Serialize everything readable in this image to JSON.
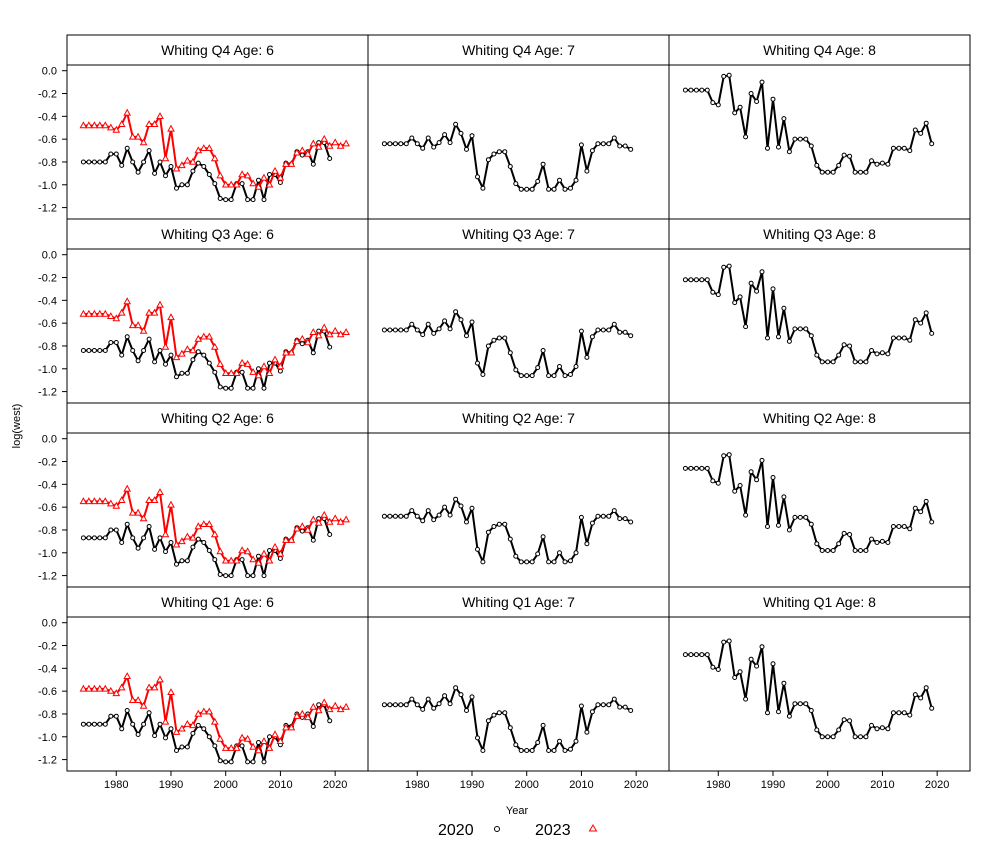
{
  "chart_data": {
    "type": "line",
    "ylabel": "log(west)",
    "xlabel": "Year",
    "xlim": [
      1971,
      2026
    ],
    "x_ticks": [
      1980,
      1990,
      2000,
      2010,
      2020
    ],
    "y_ticks": [
      0.0,
      -0.2,
      -0.4,
      -0.6,
      -0.8,
      -1.0,
      -1.2
    ],
    "y_tick_labels": [
      "0.0",
      "-0.2",
      "-0.4",
      "-0.6",
      "-0.8",
      "-1.0",
      "-1.2"
    ],
    "legend": {
      "placement": "bottom",
      "entries": [
        {
          "label": "2020",
          "color": "#000000",
          "marker": "circle"
        },
        {
          "label": "2023",
          "color": "#ff0000",
          "marker": "triangle"
        }
      ]
    },
    "years_2020": [
      1974,
      1975,
      1976,
      1977,
      1978,
      1979,
      1980,
      1981,
      1982,
      1983,
      1984,
      1985,
      1986,
      1987,
      1988,
      1989,
      1990,
      1991,
      1992,
      1993,
      1994,
      1995,
      1996,
      1997,
      1998,
      1999,
      2000,
      2001,
      2002,
      2003,
      2004,
      2005,
      2006,
      2007,
      2008,
      2009,
      2010,
      2011,
      2012,
      2013,
      2014,
      2015,
      2016,
      2017,
      2018,
      2019
    ],
    "years_2023": [
      1974,
      1975,
      1976,
      1977,
      1978,
      1979,
      1980,
      1981,
      1982,
      1983,
      1984,
      1985,
      1986,
      1987,
      1988,
      1989,
      1990,
      1991,
      1992,
      1993,
      1994,
      1995,
      1996,
      1997,
      1998,
      1999,
      2000,
      2001,
      2002,
      2003,
      2004,
      2005,
      2006,
      2007,
      2008,
      2009,
      2010,
      2011,
      2012,
      2013,
      2014,
      2015,
      2016,
      2017,
      2018,
      2019,
      2020,
      2021,
      2022
    ],
    "panel_rows": [
      {
        "ylim": [
          -1.3,
          0.05
        ],
        "panels": [
          {
            "title": "Whiting Q4 Age: 6",
            "s2020": [
              -0.8,
              -0.8,
              -0.8,
              -0.8,
              -0.8,
              -0.73,
              -0.73,
              -0.83,
              -0.68,
              -0.8,
              -0.89,
              -0.8,
              -0.7,
              -0.9,
              -0.8,
              -0.92,
              -0.84,
              -1.03,
              -1.0,
              -1.0,
              -0.88,
              -0.81,
              -0.84,
              -0.91,
              -0.99,
              -1.12,
              -1.13,
              -1.13,
              -0.99,
              -0.99,
              -1.13,
              -1.13,
              -0.96,
              -1.13,
              -0.91,
              -0.91,
              -0.98,
              -0.81,
              -0.82,
              -0.71,
              -0.74,
              -0.71,
              -0.82,
              -0.63,
              -0.63,
              -0.77
            ],
            "s2023": [
              -0.48,
              -0.48,
              -0.48,
              -0.48,
              -0.48,
              -0.5,
              -0.52,
              -0.47,
              -0.37,
              -0.58,
              -0.58,
              -0.63,
              -0.47,
              -0.47,
              -0.4,
              -0.77,
              -0.51,
              -0.86,
              -0.83,
              -0.79,
              -0.8,
              -0.7,
              -0.68,
              -0.68,
              -0.77,
              -0.92,
              -1.0,
              -1.0,
              -1.0,
              -0.91,
              -0.92,
              -0.99,
              -1.02,
              -0.94,
              -1.0,
              -0.88,
              -0.94,
              -0.82,
              -0.82,
              -0.72,
              -0.7,
              -0.73,
              -0.64,
              -0.67,
              -0.6,
              -0.66,
              -0.63,
              -0.66,
              -0.64
            ]
          },
          {
            "title": "Whiting Q4 Age: 7",
            "s2020": [
              -0.64,
              -0.64,
              -0.64,
              -0.64,
              -0.64,
              -0.59,
              -0.64,
              -0.68,
              -0.59,
              -0.67,
              -0.63,
              -0.56,
              -0.63,
              -0.47,
              -0.55,
              -0.69,
              -0.57,
              -0.93,
              -1.03,
              -0.78,
              -0.73,
              -0.71,
              -0.71,
              -0.84,
              -0.99,
              -1.04,
              -1.04,
              -1.04,
              -0.97,
              -0.82,
              -1.04,
              -1.04,
              -0.96,
              -1.04,
              -1.03,
              -0.96,
              -0.65,
              -0.88,
              -0.7,
              -0.64,
              -0.64,
              -0.64,
              -0.59,
              -0.66,
              -0.66,
              -0.69
            ],
            "s2023": null
          },
          {
            "title": "Whiting Q4 Age: 8",
            "s2020": [
              -0.17,
              -0.17,
              -0.17,
              -0.17,
              -0.17,
              -0.28,
              -0.3,
              -0.05,
              -0.04,
              -0.37,
              -0.32,
              -0.58,
              -0.2,
              -0.27,
              -0.1,
              -0.68,
              -0.25,
              -0.67,
              -0.42,
              -0.71,
              -0.6,
              -0.6,
              -0.6,
              -0.66,
              -0.83,
              -0.89,
              -0.89,
              -0.89,
              -0.83,
              -0.74,
              -0.75,
              -0.89,
              -0.89,
              -0.89,
              -0.79,
              -0.82,
              -0.81,
              -0.82,
              -0.68,
              -0.68,
              -0.68,
              -0.7,
              -0.52,
              -0.55,
              -0.46,
              -0.64
            ],
            "s2023": null
          }
        ]
      },
      {
        "ylim": [
          -1.3,
          0.05
        ],
        "panels": [
          {
            "title": "Whiting Q3 Age: 6",
            "s2020": [
              -0.84,
              -0.84,
              -0.84,
              -0.84,
              -0.84,
              -0.77,
              -0.77,
              -0.88,
              -0.72,
              -0.84,
              -0.93,
              -0.84,
              -0.74,
              -0.94,
              -0.84,
              -0.96,
              -0.88,
              -1.07,
              -1.04,
              -1.04,
              -0.92,
              -0.85,
              -0.88,
              -0.95,
              -1.03,
              -1.16,
              -1.17,
              -1.17,
              -1.03,
              -1.03,
              -1.17,
              -1.17,
              -1.0,
              -1.17,
              -0.95,
              -0.95,
              -1.02,
              -0.85,
              -0.86,
              -0.75,
              -0.78,
              -0.75,
              -0.86,
              -0.67,
              -0.67,
              -0.81
            ],
            "s2023": [
              -0.52,
              -0.52,
              -0.52,
              -0.52,
              -0.52,
              -0.54,
              -0.56,
              -0.51,
              -0.41,
              -0.62,
              -0.62,
              -0.67,
              -0.51,
              -0.51,
              -0.44,
              -0.81,
              -0.55,
              -0.9,
              -0.87,
              -0.83,
              -0.84,
              -0.74,
              -0.72,
              -0.72,
              -0.81,
              -0.96,
              -1.04,
              -1.04,
              -1.04,
              -0.95,
              -0.96,
              -1.03,
              -1.06,
              -0.98,
              -1.04,
              -0.92,
              -0.98,
              -0.86,
              -0.86,
              -0.76,
              -0.74,
              -0.77,
              -0.68,
              -0.71,
              -0.64,
              -0.7,
              -0.67,
              -0.7,
              -0.68
            ]
          },
          {
            "title": "Whiting Q3 Age: 7",
            "s2020": [
              -0.66,
              -0.66,
              -0.66,
              -0.66,
              -0.66,
              -0.61,
              -0.66,
              -0.7,
              -0.61,
              -0.69,
              -0.65,
              -0.58,
              -0.65,
              -0.5,
              -0.57,
              -0.71,
              -0.59,
              -0.95,
              -1.05,
              -0.8,
              -0.75,
              -0.73,
              -0.73,
              -0.86,
              -1.01,
              -1.06,
              -1.06,
              -1.06,
              -0.99,
              -0.84,
              -1.06,
              -1.06,
              -0.98,
              -1.06,
              -1.05,
              -0.98,
              -0.67,
              -0.9,
              -0.72,
              -0.66,
              -0.66,
              -0.66,
              -0.61,
              -0.68,
              -0.68,
              -0.71
            ],
            "s2023": null
          },
          {
            "title": "Whiting Q3 Age: 8",
            "s2020": [
              -0.22,
              -0.22,
              -0.22,
              -0.22,
              -0.22,
              -0.33,
              -0.35,
              -0.11,
              -0.1,
              -0.42,
              -0.37,
              -0.63,
              -0.25,
              -0.32,
              -0.15,
              -0.73,
              -0.3,
              -0.72,
              -0.47,
              -0.76,
              -0.65,
              -0.65,
              -0.65,
              -0.71,
              -0.88,
              -0.94,
              -0.94,
              -0.94,
              -0.88,
              -0.79,
              -0.8,
              -0.94,
              -0.94,
              -0.94,
              -0.84,
              -0.87,
              -0.86,
              -0.87,
              -0.73,
              -0.73,
              -0.73,
              -0.75,
              -0.57,
              -0.6,
              -0.51,
              -0.69
            ],
            "s2023": null
          }
        ]
      },
      {
        "ylim": [
          -1.3,
          0.05
        ],
        "panels": [
          {
            "title": "Whiting Q2 Age: 6",
            "s2020": [
              -0.87,
              -0.87,
              -0.87,
              -0.87,
              -0.87,
              -0.8,
              -0.8,
              -0.91,
              -0.75,
              -0.87,
              -0.96,
              -0.87,
              -0.77,
              -0.97,
              -0.87,
              -0.99,
              -0.91,
              -1.1,
              -1.07,
              -1.07,
              -0.95,
              -0.88,
              -0.91,
              -0.98,
              -1.06,
              -1.19,
              -1.2,
              -1.2,
              -1.06,
              -1.06,
              -1.2,
              -1.2,
              -1.03,
              -1.2,
              -0.98,
              -0.98,
              -1.05,
              -0.88,
              -0.89,
              -0.78,
              -0.81,
              -0.78,
              -0.89,
              -0.7,
              -0.7,
              -0.84
            ],
            "s2023": [
              -0.55,
              -0.55,
              -0.55,
              -0.55,
              -0.55,
              -0.57,
              -0.59,
              -0.54,
              -0.44,
              -0.65,
              -0.65,
              -0.7,
              -0.54,
              -0.54,
              -0.47,
              -0.84,
              -0.58,
              -0.93,
              -0.9,
              -0.86,
              -0.87,
              -0.77,
              -0.75,
              -0.75,
              -0.84,
              -0.99,
              -1.07,
              -1.07,
              -1.07,
              -0.98,
              -0.99,
              -1.06,
              -1.09,
              -1.01,
              -1.07,
              -0.95,
              -1.01,
              -0.89,
              -0.89,
              -0.79,
              -0.77,
              -0.8,
              -0.71,
              -0.74,
              -0.67,
              -0.73,
              -0.7,
              -0.73,
              -0.71
            ]
          },
          {
            "title": "Whiting Q2 Age: 7",
            "s2020": [
              -0.68,
              -0.68,
              -0.68,
              -0.68,
              -0.68,
              -0.63,
              -0.68,
              -0.72,
              -0.63,
              -0.71,
              -0.67,
              -0.6,
              -0.67,
              -0.53,
              -0.59,
              -0.73,
              -0.61,
              -0.97,
              -1.08,
              -0.82,
              -0.77,
              -0.75,
              -0.75,
              -0.88,
              -1.03,
              -1.08,
              -1.08,
              -1.08,
              -1.01,
              -0.86,
              -1.08,
              -1.08,
              -1.0,
              -1.08,
              -1.07,
              -1.0,
              -0.69,
              -0.92,
              -0.74,
              -0.68,
              -0.68,
              -0.68,
              -0.63,
              -0.7,
              -0.7,
              -0.73
            ],
            "s2023": null
          },
          {
            "title": "Whiting Q2 Age: 8",
            "s2020": [
              -0.26,
              -0.26,
              -0.26,
              -0.26,
              -0.26,
              -0.37,
              -0.39,
              -0.15,
              -0.14,
              -0.46,
              -0.41,
              -0.67,
              -0.29,
              -0.36,
              -0.19,
              -0.77,
              -0.34,
              -0.76,
              -0.51,
              -0.8,
              -0.69,
              -0.69,
              -0.69,
              -0.75,
              -0.92,
              -0.98,
              -0.98,
              -0.98,
              -0.92,
              -0.83,
              -0.84,
              -0.98,
              -0.98,
              -0.98,
              -0.88,
              -0.91,
              -0.9,
              -0.91,
              -0.77,
              -0.77,
              -0.77,
              -0.79,
              -0.61,
              -0.64,
              -0.55,
              -0.73
            ],
            "s2023": null
          }
        ]
      },
      {
        "ylim": [
          -1.3,
          0.05
        ],
        "panels": [
          {
            "title": "Whiting Q1 Age: 6",
            "s2020": [
              -0.89,
              -0.89,
              -0.89,
              -0.89,
              -0.89,
              -0.82,
              -0.82,
              -0.93,
              -0.77,
              -0.89,
              -0.98,
              -0.89,
              -0.79,
              -0.99,
              -0.89,
              -1.01,
              -0.93,
              -1.12,
              -1.09,
              -1.09,
              -0.97,
              -0.9,
              -0.93,
              -1.0,
              -1.08,
              -1.21,
              -1.22,
              -1.22,
              -1.08,
              -1.08,
              -1.22,
              -1.22,
              -1.05,
              -1.22,
              -1.0,
              -1.0,
              -1.07,
              -0.9,
              -0.91,
              -0.8,
              -0.83,
              -0.8,
              -0.91,
              -0.72,
              -0.72,
              -0.86
            ],
            "s2023": [
              -0.58,
              -0.58,
              -0.58,
              -0.58,
              -0.58,
              -0.6,
              -0.62,
              -0.57,
              -0.47,
              -0.68,
              -0.68,
              -0.73,
              -0.57,
              -0.57,
              -0.5,
              -0.87,
              -0.61,
              -0.96,
              -0.93,
              -0.89,
              -0.9,
              -0.8,
              -0.78,
              -0.78,
              -0.87,
              -1.02,
              -1.1,
              -1.1,
              -1.1,
              -1.01,
              -1.02,
              -1.09,
              -1.12,
              -1.04,
              -1.1,
              -0.98,
              -1.04,
              -0.92,
              -0.92,
              -0.82,
              -0.8,
              -0.83,
              -0.74,
              -0.77,
              -0.7,
              -0.76,
              -0.73,
              -0.76,
              -0.74
            ]
          },
          {
            "title": "Whiting Q1 Age: 7",
            "s2020": [
              -0.72,
              -0.72,
              -0.72,
              -0.72,
              -0.72,
              -0.67,
              -0.72,
              -0.76,
              -0.67,
              -0.75,
              -0.71,
              -0.64,
              -0.71,
              -0.57,
              -0.63,
              -0.77,
              -0.65,
              -1.01,
              -1.12,
              -0.86,
              -0.81,
              -0.79,
              -0.79,
              -0.92,
              -1.07,
              -1.12,
              -1.12,
              -1.12,
              -1.05,
              -0.9,
              -1.12,
              -1.12,
              -1.04,
              -1.12,
              -1.11,
              -1.04,
              -0.73,
              -0.96,
              -0.78,
              -0.72,
              -0.72,
              -0.72,
              -0.67,
              -0.74,
              -0.74,
              -0.77
            ],
            "s2023": null
          },
          {
            "title": "Whiting Q1 Age: 8",
            "s2020": [
              -0.28,
              -0.28,
              -0.28,
              -0.28,
              -0.28,
              -0.39,
              -0.41,
              -0.17,
              -0.16,
              -0.48,
              -0.43,
              -0.67,
              -0.32,
              -0.38,
              -0.21,
              -0.79,
              -0.36,
              -0.78,
              -0.53,
              -0.82,
              -0.71,
              -0.71,
              -0.71,
              -0.77,
              -0.94,
              -1.0,
              -1.0,
              -1.0,
              -0.94,
              -0.85,
              -0.86,
              -1.0,
              -1.0,
              -1.0,
              -0.9,
              -0.93,
              -0.92,
              -0.93,
              -0.79,
              -0.79,
              -0.79,
              -0.81,
              -0.63,
              -0.66,
              -0.57,
              -0.75
            ],
            "s2023": null
          }
        ]
      }
    ]
  }
}
